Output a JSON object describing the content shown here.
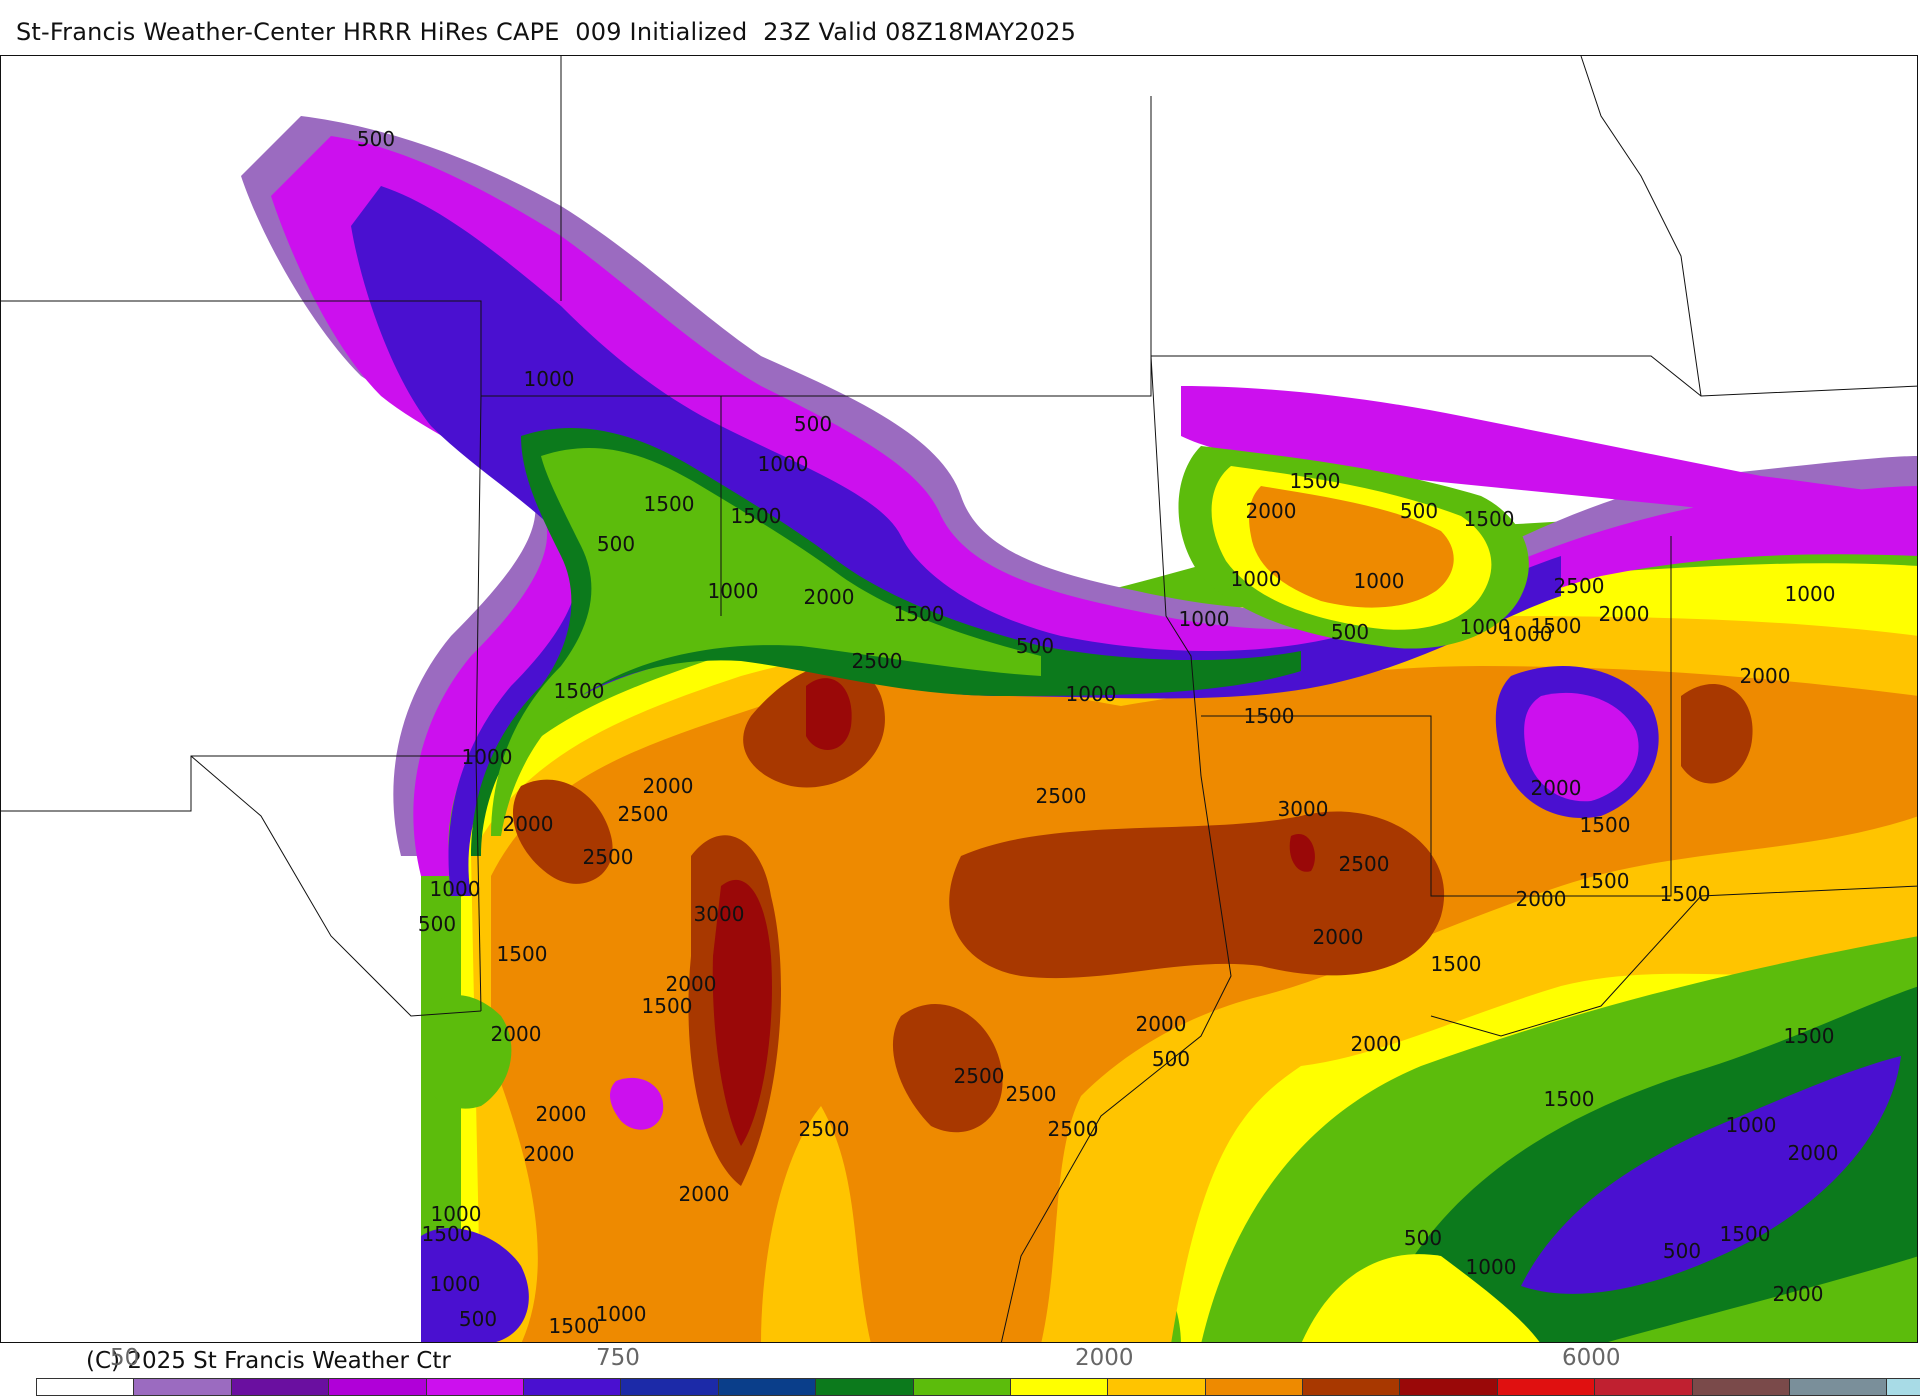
{
  "header": {
    "title": "St-Francis Weather-Center HRRR HiRes CAPE  009 Initialized  23Z Valid 08Z18MAY2025"
  },
  "footer": {
    "copyright": "(C) 2025 St Francis Weather Ctr"
  },
  "colorbar": {
    "tick_labels": [
      "50",
      "750",
      "2000",
      "6000"
    ],
    "colors": [
      "#ffffff",
      "#9b6bc0",
      "#6a0fa0",
      "#b000d8",
      "#cc10ee",
      "#4a10d0",
      "#1c2aa8",
      "#0a3e8a",
      "#0c7a1c",
      "#5cbc0c",
      "#ffff00",
      "#ffc400",
      "#ee8a00",
      "#a83800",
      "#9a0808",
      "#e01010",
      "#c02030",
      "#7a4a4a",
      "#7a8f9a",
      "#a8dbe6"
    ]
  },
  "map": {
    "palette": {
      "purple_light": "#9b6bc0",
      "magenta": "#cc10ee",
      "blue": "#4a10d0",
      "green_dark": "#0c7a1c",
      "green": "#5cbc0c",
      "yellow": "#ffff00",
      "gold": "#ffc400",
      "orange": "#ee8a00",
      "brown": "#a83800",
      "dark_red": "#9a0808"
    },
    "contour_labels": [
      "500",
      "1000",
      "500",
      "1000",
      "1500",
      "500",
      "1500",
      "1000",
      "2000",
      "1500",
      "2500",
      "1500",
      "1000",
      "2000",
      "2500",
      "2000",
      "2500",
      "3000",
      "2000",
      "1500",
      "2000",
      "1500",
      "2000",
      "1000",
      "2000",
      "1000",
      "500",
      "2500",
      "3000",
      "2500",
      "2000",
      "2500",
      "2500",
      "2500",
      "2000",
      "1000",
      "1500",
      "500",
      "1000",
      "1500",
      "500",
      "1000",
      "1500",
      "1000",
      "500",
      "1000",
      "1000",
      "1500",
      "2000",
      "2500",
      "2500",
      "2000",
      "2000",
      "1500",
      "1500",
      "2000",
      "1500",
      "500",
      "2000",
      "1500",
      "2000",
      "2000",
      "1000",
      "1500",
      "1500",
      "1000",
      "1500",
      "2000",
      "500",
      "1000",
      "500",
      "1000",
      "1500",
      "2000",
      "500",
      "1500",
      "1000"
    ]
  }
}
